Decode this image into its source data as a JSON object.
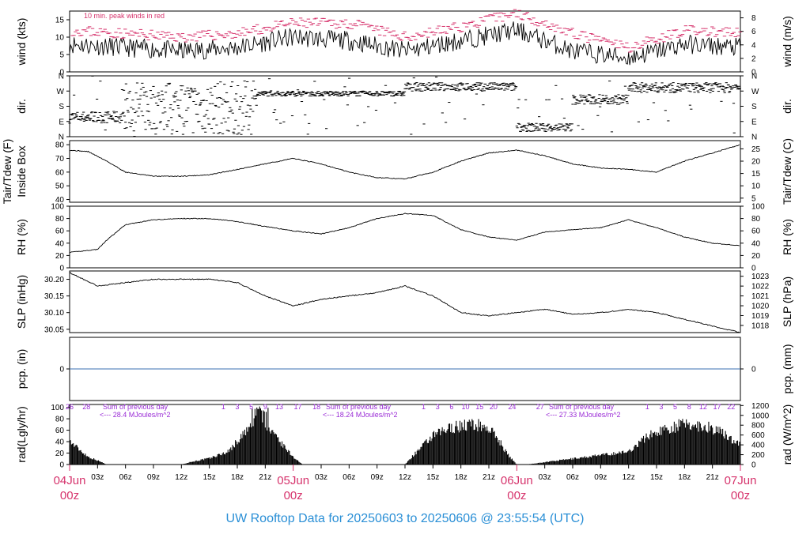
{
  "footer": "UW Rooftop Data for 20250603  to  20250606 @ 23:55:54  (UTC)",
  "colors": {
    "peak": "#d6336c",
    "precip": "#3a6fb0",
    "purple": "#9a2bd6",
    "date": "#d6336c",
    "footer": "#2a8fd6"
  },
  "time_axis": {
    "hour_ticks": [
      "03z",
      "06z",
      "09z",
      "12z",
      "15z",
      "18z",
      "21z"
    ],
    "days": [
      {
        "label": "04Jun",
        "sub": "00z"
      },
      {
        "label": "05Jun",
        "sub": "00z"
      },
      {
        "label": "06Jun",
        "sub": "00z"
      },
      {
        "label": "07Jun",
        "sub": "00z"
      }
    ]
  },
  "chart_data": [
    {
      "type": "line",
      "name": "wind",
      "ylabel": "wind (kts)",
      "ylabel_right": "wind (m/s)",
      "yticks": [
        "0",
        "5",
        "10",
        "15"
      ],
      "yticks_right": [
        "0",
        "2",
        "4",
        "6",
        "8"
      ],
      "ylim": [
        0,
        17.5
      ],
      "note": "10 min. peak winds in red",
      "x_hours": [
        0,
        6,
        12,
        18,
        24,
        30,
        36,
        42,
        48,
        54,
        60,
        66,
        72
      ],
      "series": [
        {
          "values": [
            8,
            7,
            6,
            7,
            10,
            9,
            6,
            9,
            12,
            6,
            4,
            8,
            7
          ]
        },
        {
          "values": [
            12,
            11,
            10,
            11,
            14,
            14,
            10,
            13,
            17,
            11,
            7,
            12,
            11
          ]
        }
      ]
    },
    {
      "type": "scatter",
      "name": "direction",
      "ylabel": "dir.",
      "ylabel_right": "dir.",
      "yticks": [
        "N",
        "E",
        "S",
        "W",
        "N"
      ],
      "ylim": [
        0,
        360
      ],
      "segments": [
        {
          "x": [
            0,
            6
          ],
          "y": [
            80,
            150
          ]
        },
        {
          "x": [
            6,
            20
          ],
          "y": [
            10,
            330
          ]
        },
        {
          "x": [
            20,
            36
          ],
          "y": [
            240,
            270
          ]
        },
        {
          "x": [
            36,
            48
          ],
          "y": [
            270,
            320
          ]
        },
        {
          "x": [
            48,
            54
          ],
          "y": [
            30,
            80
          ]
        },
        {
          "x": [
            54,
            60
          ],
          "y": [
            190,
            250
          ]
        },
        {
          "x": [
            60,
            72
          ],
          "y": [
            260,
            320
          ]
        }
      ]
    },
    {
      "type": "line",
      "name": "temperature",
      "ylabel": "Tair/Tdew (F)",
      "ylabel2": "Inside Box",
      "ylabel_right": "Tair/Tdew (C)",
      "yticks": [
        "40",
        "50",
        "60",
        "70",
        "80"
      ],
      "yticks_right": [
        "5",
        "10",
        "15",
        "20",
        "25"
      ],
      "ylim": [
        38,
        83
      ],
      "x_hours": [
        0,
        2,
        4,
        6,
        9,
        12,
        15,
        18,
        21,
        24,
        27,
        30,
        33,
        36,
        39,
        42,
        45,
        48,
        51,
        54,
        57,
        60,
        63,
        66,
        69,
        72
      ],
      "values": [
        76,
        75,
        68,
        60,
        57,
        57,
        58,
        62,
        66,
        70,
        66,
        60,
        56,
        55,
        60,
        68,
        74,
        76,
        72,
        66,
        63,
        62,
        60,
        68,
        74,
        80
      ]
    },
    {
      "type": "line",
      "name": "humidity",
      "ylabel": "RH (%)",
      "ylabel_right": "RH (%)",
      "yticks": [
        "0",
        "20",
        "40",
        "60",
        "80",
        "100"
      ],
      "ylim": [
        0,
        100
      ],
      "x_hours": [
        0,
        3,
        4,
        6,
        9,
        12,
        15,
        18,
        21,
        24,
        27,
        30,
        33,
        36,
        39,
        42,
        45,
        48,
        51,
        54,
        57,
        60,
        63,
        66,
        69,
        72
      ],
      "values": [
        25,
        30,
        45,
        70,
        78,
        80,
        80,
        75,
        67,
        60,
        55,
        65,
        80,
        88,
        85,
        62,
        50,
        45,
        58,
        62,
        65,
        78,
        65,
        50,
        40,
        36
      ]
    },
    {
      "type": "line",
      "name": "pressure",
      "ylabel": "SLP (inHg)",
      "ylabel_right": "SLP (hPa)",
      "yticks": [
        "30.05",
        "30.10",
        "30.15",
        "30.20"
      ],
      "yticks_right": [
        "1018",
        "1019",
        "1020",
        "1021",
        "1022",
        "1023"
      ],
      "ylim": [
        30.04,
        30.225
      ],
      "x_hours": [
        0,
        3,
        6,
        9,
        12,
        15,
        18,
        21,
        24,
        27,
        30,
        33,
        36,
        39,
        42,
        45,
        48,
        51,
        54,
        57,
        60,
        63,
        66,
        69,
        72
      ],
      "values": [
        30.22,
        30.18,
        30.19,
        30.2,
        30.2,
        30.2,
        30.19,
        30.15,
        30.12,
        30.14,
        30.15,
        30.16,
        30.18,
        30.15,
        30.1,
        30.09,
        30.1,
        30.11,
        30.095,
        30.1,
        30.11,
        30.1,
        30.08,
        30.06,
        30.04
      ]
    },
    {
      "type": "line",
      "name": "precipitation",
      "ylabel": "pcp. (in)",
      "ylabel_right": "pcp. (mm)",
      "yticks": [
        "0"
      ],
      "yticks_right": [
        "0"
      ],
      "ylim": [
        -1,
        1
      ],
      "x_hours": [
        0,
        72
      ],
      "values": [
        0,
        0
      ]
    },
    {
      "type": "area",
      "name": "radiation",
      "ylabel": "rad(Lgly/hr)",
      "ylabel_right": "rad (W/m^2)",
      "yticks": [
        "0",
        "20",
        "40",
        "60",
        "80",
        "100"
      ],
      "yticks_right": [
        "0",
        "200",
        "400",
        "600",
        "800",
        "1000",
        "1200"
      ],
      "ylim": [
        0,
        105
      ],
      "x_hours": [
        0,
        1,
        2,
        3,
        4,
        12,
        13,
        15,
        17,
        18,
        19,
        20,
        21,
        22,
        23,
        24,
        25,
        36,
        37,
        39,
        41,
        43,
        44,
        45,
        46,
        47,
        48,
        49,
        60,
        62,
        64,
        66,
        68,
        69,
        70,
        71,
        72
      ],
      "values": [
        45,
        30,
        15,
        8,
        0,
        0,
        5,
        12,
        25,
        45,
        65,
        85,
        75,
        55,
        35,
        15,
        0,
        0,
        20,
        55,
        72,
        78,
        76,
        70,
        50,
        20,
        0,
        0,
        25,
        55,
        70,
        78,
        75,
        70,
        62,
        50,
        40
      ],
      "daily_sum": [
        {
          "text": "Sum of previous day",
          "value": "<--- 28.4 MJoules/m^2"
        },
        {
          "text": "Sum of previous day",
          "value": "<--- 18.24 MJoules/m^2"
        },
        {
          "text": "Sum of previous day",
          "value": "<--- 27.33 MJoules/m^2"
        }
      ],
      "hour_markers": [
        {
          "x": 0,
          "label": "26"
        },
        {
          "x": 1.8,
          "label": "28"
        },
        {
          "x": 16.5,
          "label": "1"
        },
        {
          "x": 18,
          "label": "3"
        },
        {
          "x": 19.5,
          "label": "5"
        },
        {
          "x": 21,
          "label": "9"
        },
        {
          "x": 22.5,
          "label": "13"
        },
        {
          "x": 24.5,
          "label": "17"
        },
        {
          "x": 26.5,
          "label": "18"
        },
        {
          "x": 38,
          "label": "1"
        },
        {
          "x": 39.5,
          "label": "3"
        },
        {
          "x": 41,
          "label": "6"
        },
        {
          "x": 42.5,
          "label": "10"
        },
        {
          "x": 44,
          "label": "15"
        },
        {
          "x": 45.5,
          "label": "20"
        },
        {
          "x": 47.5,
          "label": "24"
        },
        {
          "x": 50.5,
          "label": "27"
        },
        {
          "x": 62,
          "label": "1"
        },
        {
          "x": 63.5,
          "label": "3"
        },
        {
          "x": 65,
          "label": "5"
        },
        {
          "x": 66.5,
          "label": "8"
        },
        {
          "x": 68,
          "label": "12"
        },
        {
          "x": 69.5,
          "label": "17"
        },
        {
          "x": 71,
          "label": "22"
        }
      ]
    }
  ]
}
